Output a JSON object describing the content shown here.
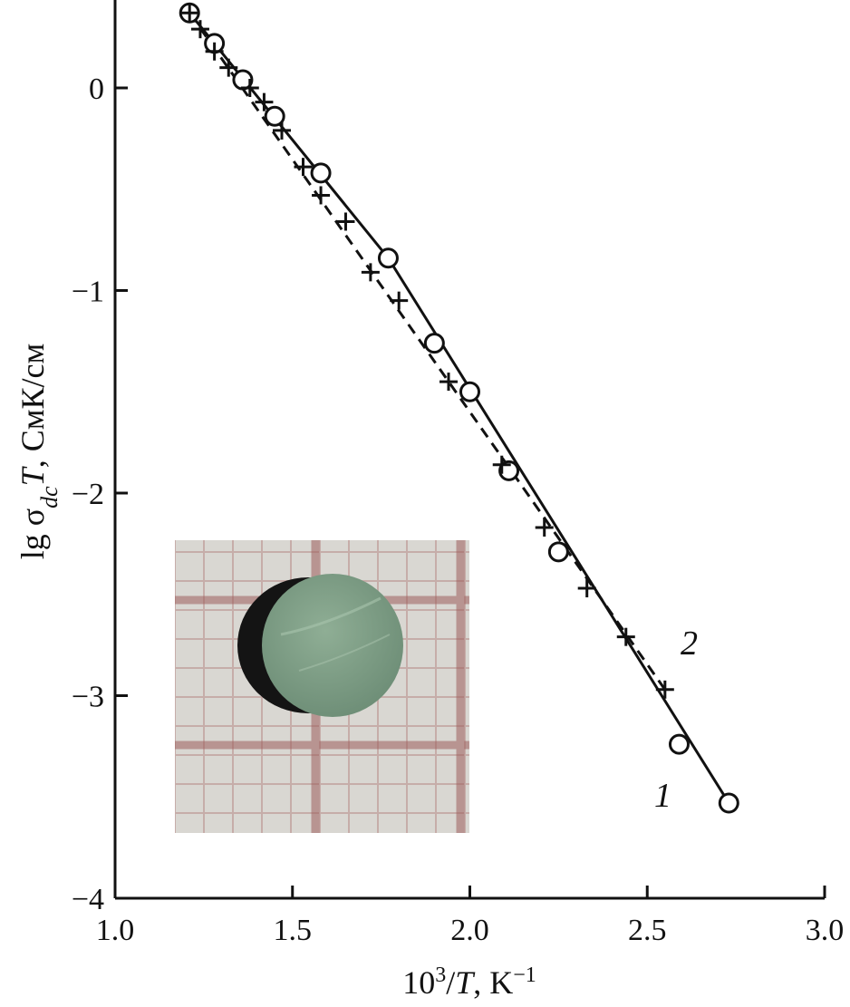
{
  "chart_data": {
    "type": "scatter",
    "title": "",
    "xlabel": "10³/T, K⁻¹",
    "ylabel": "lg σdcT, СмК/см",
    "xlim": [
      1.0,
      3.0
    ],
    "ylim": [
      -4,
      0.4
    ],
    "x_ticks": [
      1.0,
      1.5,
      2.0,
      2.5,
      3.0
    ],
    "x_tick_labels": [
      "1.0",
      "1.5",
      "2.0",
      "2.5",
      "3.0"
    ],
    "y_ticks": [
      0,
      -1,
      -2,
      -3,
      -4
    ],
    "y_tick_labels": [
      "0",
      "−1",
      "−2",
      "−3",
      "−4"
    ],
    "grid": false,
    "series": [
      {
        "name": "1",
        "marker": "circle",
        "line_style": "solid",
        "points": [
          [
            1.21,
            0.37
          ],
          [
            1.28,
            0.22
          ],
          [
            1.36,
            0.04
          ],
          [
            1.45,
            -0.14
          ],
          [
            1.58,
            -0.42
          ],
          [
            1.77,
            -0.84
          ],
          [
            1.9,
            -1.26
          ],
          [
            2.0,
            -1.5
          ],
          [
            2.11,
            -1.89
          ],
          [
            2.25,
            -2.29
          ],
          [
            2.59,
            -3.24
          ],
          [
            2.73,
            -3.53
          ]
        ],
        "line": [
          [
            1.21,
            0.37
          ],
          [
            1.77,
            -0.84
          ],
          [
            2.73,
            -3.53
          ]
        ]
      },
      {
        "name": "2",
        "marker": "plus",
        "line_style": "dashed",
        "points": [
          [
            1.21,
            0.37
          ],
          [
            1.24,
            0.29
          ],
          [
            1.28,
            0.18
          ],
          [
            1.32,
            0.1
          ],
          [
            1.38,
            0.0
          ],
          [
            1.42,
            -0.07
          ],
          [
            1.47,
            -0.21
          ],
          [
            1.53,
            -0.39
          ],
          [
            1.58,
            -0.53
          ],
          [
            1.65,
            -0.66
          ],
          [
            1.72,
            -0.91
          ],
          [
            1.8,
            -1.05
          ],
          [
            1.94,
            -1.45
          ],
          [
            2.09,
            -1.86
          ],
          [
            2.21,
            -2.17
          ],
          [
            2.33,
            -2.47
          ],
          [
            2.44,
            -2.71
          ],
          [
            2.55,
            -2.97
          ]
        ],
        "line": [
          [
            1.21,
            0.37
          ],
          [
            2.55,
            -2.97
          ]
        ]
      }
    ],
    "annotations": [
      "1",
      "2"
    ],
    "inset": "photograph of round greenish pellet sample on graph paper"
  }
}
